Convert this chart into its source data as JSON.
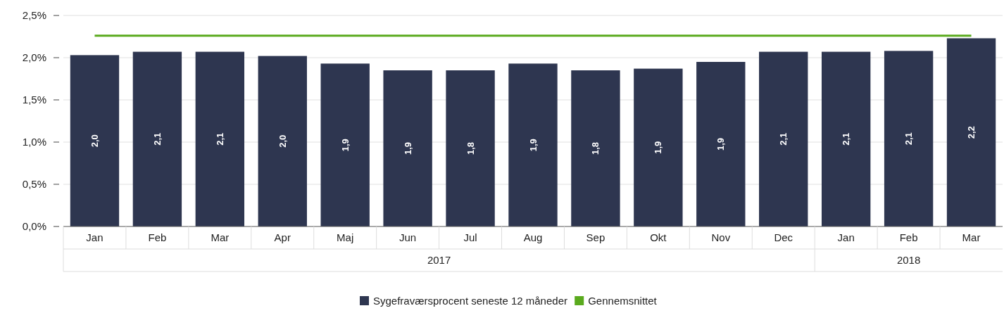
{
  "chart_data": {
    "type": "bar",
    "categories": [
      "Jan",
      "Feb",
      "Mar",
      "Apr",
      "Maj",
      "Jun",
      "Jul",
      "Aug",
      "Sep",
      "Okt",
      "Nov",
      "Dec",
      "Jan",
      "Feb",
      "Mar"
    ],
    "series": [
      {
        "name": "Sygefraværsprocent seneste 12 måneder",
        "color": "#2e3650",
        "values": [
          2.03,
          2.07,
          2.07,
          2.02,
          1.93,
          1.85,
          1.85,
          1.93,
          1.85,
          1.87,
          1.95,
          2.07,
          2.07,
          2.08,
          2.23
        ],
        "value_labels": [
          "2,0",
          "2,1",
          "2,1",
          "2,0",
          "1,9",
          "1,9",
          "1,8",
          "1,9",
          "1,8",
          "1,9",
          "1,9",
          "2,1",
          "2,1",
          "2,1",
          "2,2"
        ]
      },
      {
        "name": "Gennemsnittet",
        "type": "line",
        "color": "#5aaa1e",
        "values": [
          2.26,
          2.26,
          2.26,
          2.26,
          2.26,
          2.26,
          2.26,
          2.26,
          2.26,
          2.26,
          2.26,
          2.26,
          2.26,
          2.26,
          2.26
        ]
      }
    ],
    "annotations": [
      "2017",
      "2018"
    ],
    "ylim": [
      0,
      2.5
    ],
    "yticks": [
      {
        "value": 0,
        "label": "0,0%"
      },
      {
        "value": 0.5,
        "label": "0,5%"
      },
      {
        "value": 1,
        "label": "1,0%"
      },
      {
        "value": 1.5,
        "label": "1,5%"
      },
      {
        "value": 2,
        "label": "2,0%"
      },
      {
        "value": 2.5,
        "label": "2,5%"
      }
    ],
    "grid": "y",
    "legend": "bottom",
    "marker": "none"
  }
}
